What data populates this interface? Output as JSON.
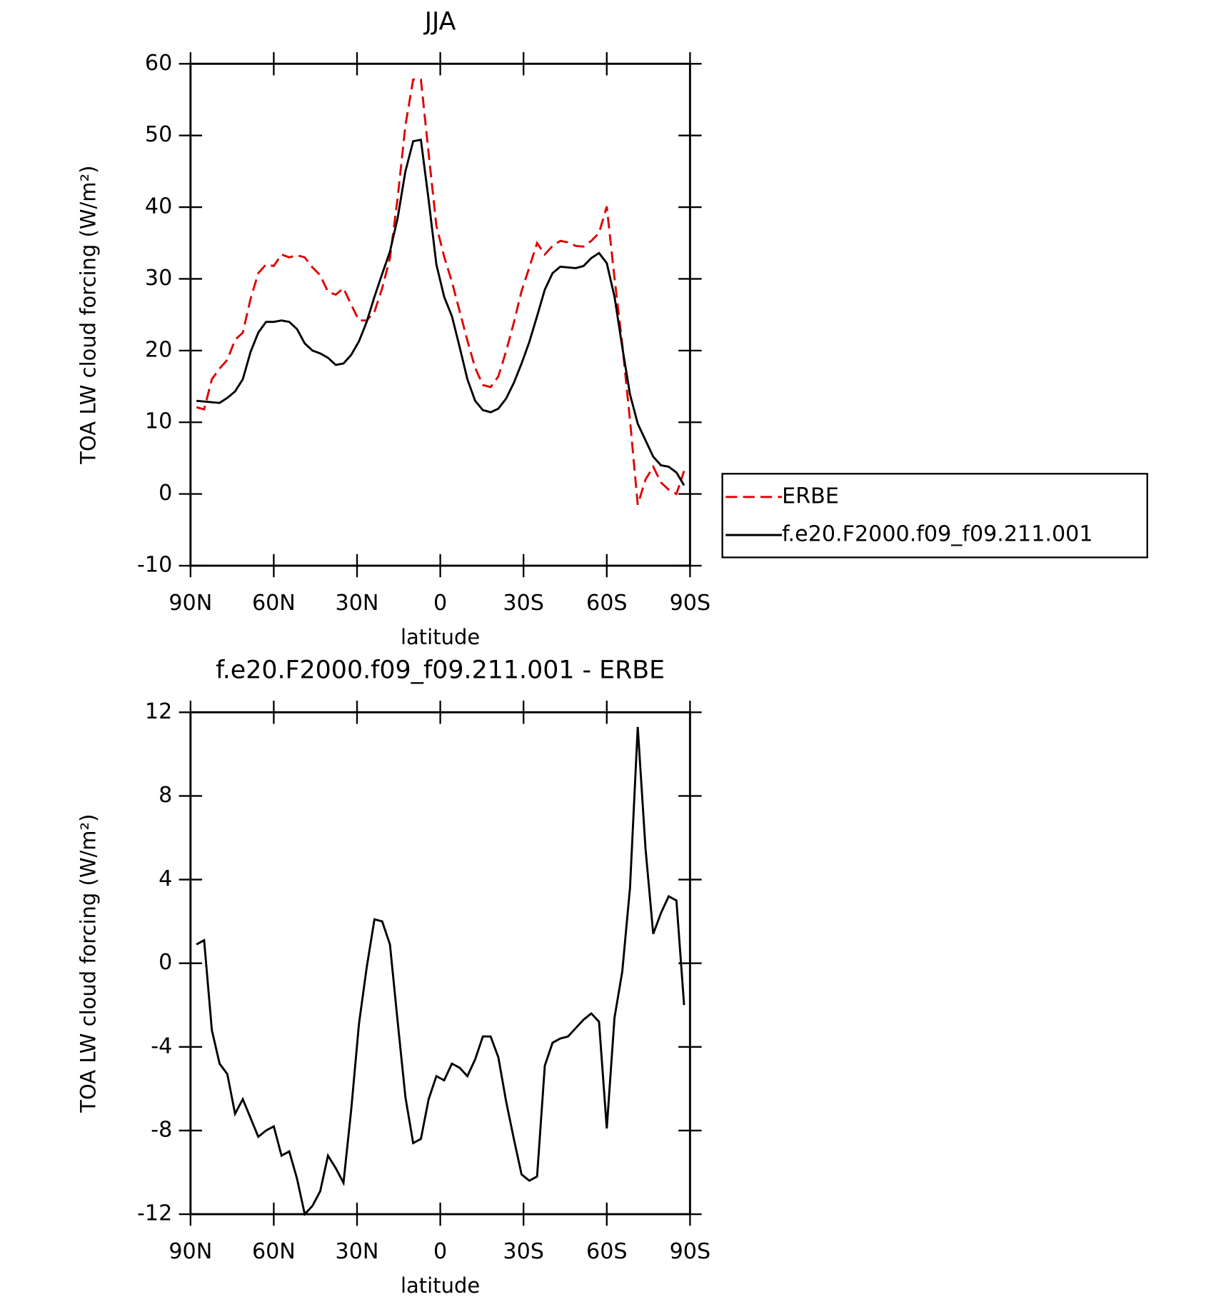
{
  "chart_data": [
    {
      "type": "line",
      "title": "JJA",
      "xlabel": "latitude",
      "ylabel": "TOA LW cloud forcing (W/m²)",
      "x": [
        87.86,
        85.1,
        82.31,
        79.53,
        76.74,
        73.95,
        71.16,
        68.37,
        65.58,
        62.79,
        60.0,
        57.21,
        54.42,
        51.63,
        48.84,
        46.05,
        43.26,
        40.47,
        37.67,
        34.88,
        32.09,
        29.3,
        26.51,
        23.72,
        20.93,
        18.14,
        15.35,
        12.56,
        9.77,
        6.98,
        4.19,
        1.4,
        -1.4,
        -4.19,
        -6.98,
        -9.77,
        -12.56,
        -15.35,
        -18.14,
        -20.93,
        -23.72,
        -26.51,
        -29.3,
        -32.09,
        -34.88,
        -37.67,
        -40.47,
        -43.26,
        -46.05,
        -48.84,
        -51.63,
        -54.42,
        -57.21,
        -60.0,
        -62.79,
        -65.58,
        -68.37,
        -71.16,
        -73.95,
        -76.74,
        -79.53,
        -82.31,
        -85.1,
        -87.86
      ],
      "series": [
        {
          "name": "ERBE",
          "color": "#e00000",
          "dash": true,
          "values": [
            12.1,
            11.8,
            16.0,
            17.5,
            18.7,
            21.5,
            22.5,
            27.2,
            30.8,
            32.0,
            31.8,
            33.4,
            33.0,
            33.3,
            33.0,
            31.6,
            30.5,
            28.2,
            27.8,
            28.7,
            26.4,
            24.2,
            24.2,
            25.4,
            28.7,
            32.9,
            41.3,
            51.4,
            57.8,
            57.8,
            47.5,
            37.4,
            33.1,
            29.6,
            25.5,
            21.4,
            17.6,
            15.2,
            14.9,
            16.4,
            19.9,
            23.9,
            28.3,
            31.6,
            35.0,
            33.4,
            34.6,
            35.3,
            35.1,
            34.6,
            34.5,
            35.3,
            36.4,
            40.1,
            30.1,
            20.9,
            10.3,
            -1.5,
            2.0,
            3.8,
            1.6,
            0.6,
            0.0,
            3.2
          ]
        },
        {
          "name": "f.e20.F2000.f09_f09.211.001",
          "color": "#000000",
          "dash": false,
          "values": [
            13.0,
            12.9,
            12.8,
            12.7,
            13.4,
            14.3,
            16.0,
            19.8,
            22.5,
            24.0,
            24.0,
            24.2,
            24.0,
            23.0,
            21.0,
            20.0,
            19.6,
            19.0,
            18.0,
            18.2,
            19.4,
            21.3,
            24.0,
            27.5,
            30.7,
            33.8,
            38.5,
            45.0,
            49.2,
            49.4,
            41.0,
            32.0,
            27.5,
            24.8,
            20.5,
            16.0,
            13.0,
            11.7,
            11.4,
            11.9,
            13.3,
            15.5,
            18.2,
            21.2,
            24.8,
            28.5,
            30.8,
            31.7,
            31.6,
            31.5,
            31.8,
            32.9,
            33.6,
            32.2,
            27.5,
            20.5,
            13.9,
            9.8,
            7.5,
            5.2,
            4.0,
            3.8,
            3.0,
            1.2
          ]
        }
      ],
      "xlim": [
        90,
        -90
      ],
      "xticks": [
        {
          "value": 90,
          "label": "90N"
        },
        {
          "value": 60,
          "label": "60N"
        },
        {
          "value": 30,
          "label": "30N"
        },
        0,
        {
          "value": -30,
          "label": "30S"
        },
        {
          "value": -60,
          "label": "60S"
        },
        {
          "value": -90,
          "label": "90S"
        }
      ],
      "ylim": [
        -10,
        60
      ],
      "yticks": [
        60,
        50,
        40,
        30,
        20,
        10,
        0,
        -10
      ],
      "legend": "right"
    },
    {
      "type": "line",
      "title": "f.e20.F2000.f09_f09.211.001 - ERBE",
      "xlabel": "latitude",
      "ylabel": "TOA LW cloud forcing (W/m²)",
      "x": [
        87.86,
        85.1,
        82.31,
        79.53,
        76.74,
        73.95,
        71.16,
        68.37,
        65.58,
        62.79,
        60.0,
        57.21,
        54.42,
        51.63,
        48.84,
        46.05,
        43.26,
        40.47,
        37.67,
        34.88,
        32.09,
        29.3,
        26.51,
        23.72,
        20.93,
        18.14,
        15.35,
        12.56,
        9.77,
        6.98,
        4.19,
        1.4,
        -1.4,
        -4.19,
        -6.98,
        -9.77,
        -12.56,
        -15.35,
        -18.14,
        -20.93,
        -23.72,
        -26.51,
        -29.3,
        -32.09,
        -34.88,
        -37.67,
        -40.47,
        -43.26,
        -46.05,
        -48.84,
        -51.63,
        -54.42,
        -57.21,
        -60.0,
        -62.79,
        -65.58,
        -68.37,
        -71.16,
        -73.95,
        -76.74,
        -79.53,
        -82.31,
        -85.1,
        -87.86
      ],
      "series": [
        {
          "color": "#000000",
          "dash": false,
          "values": [
            0.9,
            1.1,
            -3.2,
            -4.8,
            -5.3,
            -7.2,
            -6.5,
            -7.4,
            -8.3,
            -8.0,
            -7.8,
            -9.2,
            -9.0,
            -10.3,
            -12.0,
            -11.6,
            -10.9,
            -9.2,
            -9.8,
            -10.5,
            -7.0,
            -2.9,
            -0.2,
            2.1,
            2.0,
            0.9,
            -2.8,
            -6.4,
            -8.6,
            -8.4,
            -6.5,
            -5.4,
            -5.6,
            -4.8,
            -5.0,
            -5.4,
            -4.6,
            -3.5,
            -3.5,
            -4.5,
            -6.6,
            -8.4,
            -10.1,
            -10.4,
            -10.2,
            -4.9,
            -3.8,
            -3.6,
            -3.5,
            -3.1,
            -2.7,
            -2.4,
            -2.8,
            -7.9,
            -2.6,
            -0.4,
            3.6,
            11.3,
            5.5,
            1.4,
            2.4,
            3.2,
            3.0,
            -2.0
          ]
        }
      ],
      "xlim": [
        90,
        -90
      ],
      "xticks": [
        {
          "value": 90,
          "label": "90N"
        },
        {
          "value": 60,
          "label": "60N"
        },
        {
          "value": 30,
          "label": "30N"
        },
        0,
        {
          "value": -30,
          "label": "30S"
        },
        {
          "value": -60,
          "label": "60S"
        },
        {
          "value": -90,
          "label": "90S"
        }
      ],
      "ylim": [
        -12,
        12
      ],
      "yticks": [
        12,
        8,
        4,
        0,
        -4,
        -8,
        -12
      ]
    }
  ]
}
